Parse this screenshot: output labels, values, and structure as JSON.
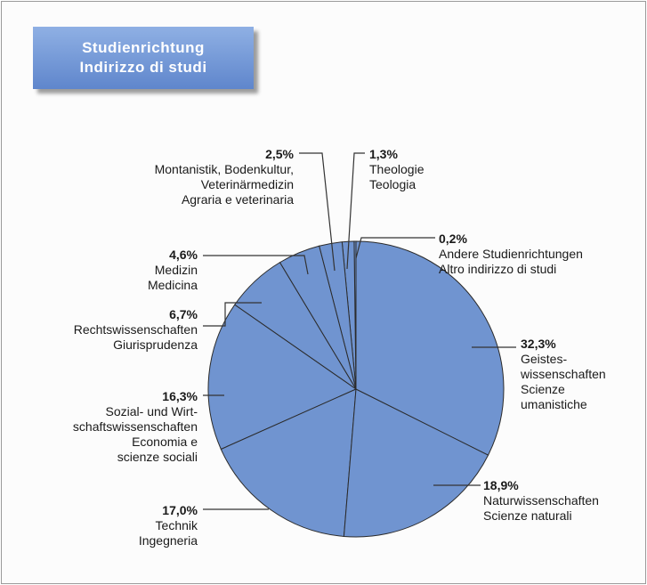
{
  "chart_data": {
    "type": "pie",
    "title": "Studienrichtung\nIndirizzo di studi",
    "categories": [
      "Geistes-\nwissenschaften\nScienze\numanistiche",
      "Naturwissenschaften\nScienze naturali",
      "Technik\nIngegneria",
      "Sozial- und Wirt-\nschaftswissenschaften\nEconomia e\nscienze sociali",
      "Rechtswissenschaften\nGiurisprudenza",
      "Medizin\nMedicina",
      "Montanistik, Bodenkultur,\nVeterinärmedizin\nAgraria e veterinaria",
      "Theologie\nTeologia",
      "Andere Studienrichtungen\nAltro indirizzo di studi"
    ],
    "values": [
      32.3,
      18.9,
      17.0,
      16.3,
      6.7,
      4.6,
      2.5,
      1.3,
      0.2
    ],
    "value_labels": [
      "32,3%",
      "18,9%",
      "17,0%",
      "16,3%",
      "6,7%",
      "4,6%",
      "2,5%",
      "1,3%",
      "0,2%"
    ],
    "color": "#7094d0"
  }
}
